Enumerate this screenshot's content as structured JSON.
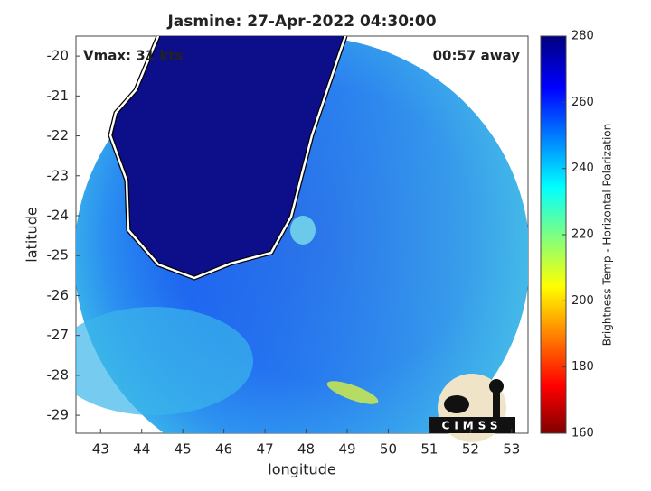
{
  "map": {
    "title": "Jasmine: 27-Apr-2022 04:30:00",
    "annotations": {
      "intensity": "Vmax: 31 kts",
      "time_offset": "00:57 away"
    },
    "xlabel": "longitude",
    "ylabel": "latitude",
    "xlim": [
      42.4,
      53.4
    ],
    "xticks": [
      43,
      44,
      45,
      46,
      47,
      48,
      49,
      50,
      51,
      52,
      53
    ],
    "ylim": [
      -29.45,
      -19.5
    ],
    "yticks": [
      -20,
      -21,
      -22,
      -23,
      -24,
      -25,
      -26,
      -27,
      -28,
      -29
    ],
    "colorbar": {
      "label": "Brightness Temp - Horizontal Polarization",
      "lim": [
        160,
        280
      ],
      "ticks": [
        160,
        180,
        200,
        220,
        240,
        260,
        280
      ]
    },
    "logo": "CIMSS"
  }
}
